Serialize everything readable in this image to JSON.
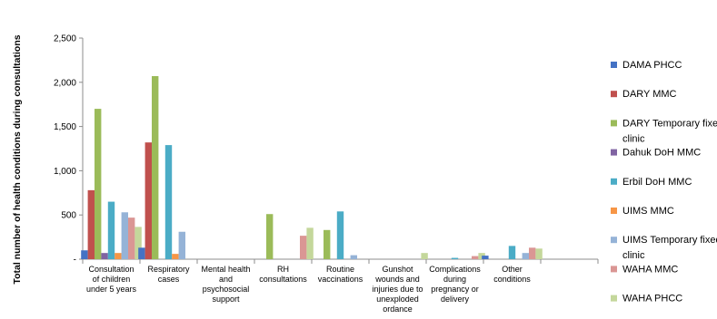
{
  "chart_data": {
    "type": "bar",
    "ylabel": "Total number of health conditions during consultations",
    "y_tick_labels": [
      "-",
      "500",
      "1,000",
      "1,500",
      "2,000",
      "2,500"
    ],
    "ylim": [
      0,
      2500
    ],
    "grid": false,
    "legend_position": "right",
    "categories": [
      [
        "Consultation",
        "of children",
        "under 5 years"
      ],
      [
        "Respiratory",
        "cases"
      ],
      [
        "Mental health",
        "and",
        "psychosocial",
        "support"
      ],
      [
        "RH",
        "consultations"
      ],
      [
        "Routine",
        "vaccinations"
      ],
      [
        "Gunshot",
        "wounds and",
        "injuries due to",
        "unexploded",
        "ordance"
      ],
      [
        "Complications",
        "during",
        "pregnancy or",
        "delivery"
      ],
      [
        "Other",
        "conditions"
      ]
    ],
    "series": [
      {
        "name": "DAMA PHCC",
        "color": "#4472C4",
        "values": [
          100,
          130,
          0,
          0,
          0,
          0,
          0,
          40
        ]
      },
      {
        "name": "DARY MMC",
        "color": "#C0504D",
        "values": [
          780,
          1320,
          0,
          0,
          0,
          0,
          0,
          0
        ]
      },
      {
        "name": "DARY Temporary fixed clinic",
        "color": "#9BBB59",
        "values": [
          1700,
          2070,
          0,
          510,
          330,
          0,
          0,
          0
        ]
      },
      {
        "name": "Dahuk DoH MMC",
        "color": "#8064A2",
        "values": [
          70,
          0,
          0,
          0,
          0,
          0,
          0,
          0
        ]
      },
      {
        "name": "Erbil DoH MMC",
        "color": "#4BACC6",
        "values": [
          650,
          1290,
          0,
          0,
          540,
          0,
          15,
          150
        ]
      },
      {
        "name": "UIMS MMC",
        "color": "#F79646",
        "values": [
          70,
          60,
          0,
          0,
          0,
          0,
          0,
          0
        ]
      },
      {
        "name": "UIMS Temporary fixed clinic",
        "color": "#95B3D7",
        "values": [
          530,
          310,
          0,
          0,
          45,
          0,
          0,
          70
        ]
      },
      {
        "name": "WAHA MMC",
        "color": "#DA9694",
        "values": [
          470,
          0,
          0,
          265,
          0,
          0,
          35,
          130
        ]
      },
      {
        "name": "WAHA PHCC",
        "color": "#C4D79B",
        "values": [
          365,
          0,
          0,
          355,
          0,
          70,
          70,
          120
        ]
      }
    ]
  }
}
